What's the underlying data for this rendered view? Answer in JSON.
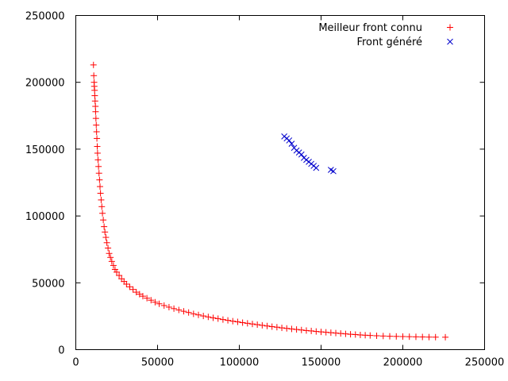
{
  "chart_data": {
    "type": "scatter",
    "title": "",
    "xlabel": "",
    "ylabel": "",
    "xlim": [
      0,
      250000
    ],
    "ylim": [
      0,
      250000
    ],
    "xticks": [
      0,
      50000,
      100000,
      150000,
      200000,
      250000
    ],
    "yticks": [
      0,
      50000,
      100000,
      150000,
      200000,
      250000
    ],
    "xtick_labels": [
      "0",
      "50000",
      "100000",
      "150000",
      "200000",
      "250000"
    ],
    "ytick_labels": [
      "0",
      "50000",
      "100000",
      "150000",
      "200000",
      "250000"
    ],
    "grid": false,
    "legend_position": "top-right",
    "series": [
      {
        "name": "Meilleur front connu",
        "marker": "plus",
        "color": "#ff0000",
        "points": [
          [
            10800,
            213000
          ],
          [
            11000,
            205000
          ],
          [
            11200,
            200000
          ],
          [
            11300,
            197000
          ],
          [
            11500,
            194000
          ],
          [
            11600,
            190000
          ],
          [
            11800,
            186000
          ],
          [
            12000,
            182000
          ],
          [
            12100,
            178000
          ],
          [
            12300,
            173000
          ],
          [
            12500,
            168000
          ],
          [
            12700,
            163000
          ],
          [
            12900,
            158000
          ],
          [
            13100,
            152000
          ],
          [
            13300,
            147000
          ],
          [
            13600,
            142000
          ],
          [
            13900,
            137000
          ],
          [
            14200,
            132000
          ],
          [
            14500,
            127000
          ],
          [
            14800,
            122000
          ],
          [
            15100,
            117000
          ],
          [
            15500,
            112000
          ],
          [
            15900,
            107000
          ],
          [
            16300,
            102000
          ],
          [
            16800,
            97000
          ],
          [
            17300,
            92000
          ],
          [
            17800,
            88000
          ],
          [
            18400,
            84000
          ],
          [
            19000,
            80000
          ],
          [
            19700,
            76000
          ],
          [
            20400,
            72000
          ],
          [
            21200,
            69000
          ],
          [
            22000,
            66000
          ],
          [
            23000,
            63000
          ],
          [
            24000,
            60000
          ],
          [
            25000,
            58000
          ],
          [
            26500,
            55500
          ],
          [
            28000,
            53000
          ],
          [
            29500,
            51000
          ],
          [
            31000,
            49000
          ],
          [
            33000,
            47000
          ],
          [
            35000,
            45000
          ],
          [
            37000,
            43000
          ],
          [
            39000,
            41500
          ],
          [
            41000,
            40000
          ],
          [
            43500,
            38500
          ],
          [
            46000,
            37000
          ],
          [
            48500,
            35500
          ],
          [
            51000,
            34300
          ],
          [
            54000,
            33000
          ],
          [
            57000,
            31800
          ],
          [
            60000,
            30700
          ],
          [
            63000,
            29700
          ],
          [
            66000,
            28700
          ],
          [
            69000,
            27800
          ],
          [
            72000,
            26800
          ],
          [
            75000,
            26000
          ],
          [
            78000,
            25200
          ],
          [
            81000,
            24500
          ],
          [
            84000,
            23800
          ],
          [
            87000,
            23200
          ],
          [
            90000,
            22500
          ],
          [
            93000,
            21900
          ],
          [
            96000,
            21300
          ],
          [
            99000,
            20800
          ],
          [
            102000,
            20200
          ],
          [
            105000,
            19700
          ],
          [
            108000,
            19200
          ],
          [
            111000,
            18700
          ],
          [
            114000,
            18200
          ],
          [
            117000,
            17700
          ],
          [
            120000,
            17200
          ],
          [
            123000,
            16800
          ],
          [
            126000,
            16300
          ],
          [
            129000,
            15900
          ],
          [
            132000,
            15500
          ],
          [
            135000,
            15100
          ],
          [
            138000,
            14700
          ],
          [
            141000,
            14300
          ],
          [
            144000,
            14000
          ],
          [
            147000,
            13600
          ],
          [
            150000,
            13300
          ],
          [
            153000,
            13000
          ],
          [
            156000,
            12700
          ],
          [
            159000,
            12400
          ],
          [
            162000,
            12100
          ],
          [
            165000,
            11800
          ],
          [
            168000,
            11500
          ],
          [
            171000,
            11300
          ],
          [
            174000,
            11000
          ],
          [
            177000,
            10800
          ],
          [
            180000,
            10600
          ],
          [
            184000,
            10400
          ],
          [
            188000,
            10200
          ],
          [
            192000,
            10000
          ],
          [
            196000,
            9900
          ],
          [
            200000,
            9800
          ],
          [
            204000,
            9700
          ],
          [
            208000,
            9600
          ],
          [
            212000,
            9500
          ],
          [
            216000,
            9400
          ],
          [
            220000,
            9350
          ],
          [
            226000,
            9300
          ]
        ]
      },
      {
        "name": "Front généré",
        "marker": "cross",
        "color": "#0000cc",
        "points": [
          [
            127500,
            159500
          ],
          [
            129000,
            158000
          ],
          [
            130500,
            156500
          ],
          [
            132000,
            154000
          ],
          [
            133500,
            151000
          ],
          [
            135000,
            149000
          ],
          [
            136500,
            147500
          ],
          [
            138000,
            146000
          ],
          [
            139500,
            143500
          ],
          [
            141000,
            142000
          ],
          [
            142500,
            140500
          ],
          [
            144000,
            139000
          ],
          [
            145500,
            137500
          ],
          [
            147000,
            136000
          ],
          [
            156000,
            134500
          ],
          [
            157500,
            133500
          ]
        ]
      }
    ]
  }
}
